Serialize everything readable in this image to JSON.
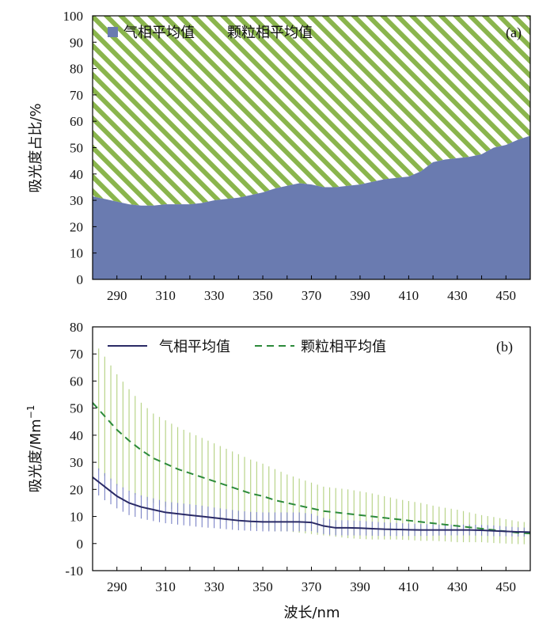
{
  "colors": {
    "gas_fill": "#6a7bb0",
    "particle_hatch": "#8ab54d",
    "gas_line": "#2a2a66",
    "gas_error": "#7b83c6",
    "particle_line": "#2c8a3a",
    "particle_error": "#b9d48a",
    "axis": "#000000"
  },
  "chart_data": [
    {
      "type": "area",
      "panel_label": "(a)",
      "ylabel": "吸光度占比/%",
      "xlabel": "",
      "xlim": [
        280,
        460
      ],
      "ylim": [
        0,
        100
      ],
      "x_ticks": [
        290,
        310,
        330,
        350,
        370,
        390,
        410,
        430,
        450
      ],
      "y_ticks": [
        0,
        10,
        20,
        30,
        40,
        50,
        60,
        70,
        80,
        90,
        100
      ],
      "stacked": true,
      "legend_position": "top-left",
      "x": [
        280,
        285,
        290,
        295,
        300,
        305,
        310,
        315,
        320,
        325,
        330,
        335,
        340,
        345,
        350,
        355,
        360,
        365,
        370,
        375,
        380,
        385,
        390,
        395,
        400,
        405,
        410,
        415,
        420,
        425,
        430,
        435,
        440,
        445,
        450,
        455,
        460
      ],
      "series": [
        {
          "name": "气相平均值",
          "style": "solid",
          "values": [
            31.5,
            30.5,
            29.5,
            28.5,
            28,
            28,
            28.5,
            28.5,
            28.5,
            29,
            30,
            30.5,
            31,
            32,
            33,
            34.5,
            35.5,
            36.5,
            36,
            35,
            35,
            35.5,
            36,
            37,
            38,
            38.5,
            39,
            41,
            44.5,
            45.5,
            46,
            46.5,
            47.5,
            50,
            51,
            53,
            54.5
          ]
        },
        {
          "name": "颗粒相平均值",
          "style": "hatched",
          "values": [
            68.5,
            69.5,
            70.5,
            71.5,
            72,
            72,
            71.5,
            71.5,
            71.5,
            71,
            70,
            69.5,
            69,
            68,
            67,
            65.5,
            64.5,
            63.5,
            64,
            65,
            65,
            64.5,
            64,
            63,
            62,
            61.5,
            61,
            59,
            55.5,
            54.5,
            54,
            53.5,
            52.5,
            50,
            49,
            47,
            45.5
          ]
        }
      ]
    },
    {
      "type": "line",
      "panel_label": "(b)",
      "ylabel": "吸光度/Mm",
      "ylabel_superscript": "−1",
      "xlabel": "波长/nm",
      "xlim": [
        280,
        460
      ],
      "ylim": [
        -10,
        80
      ],
      "x_ticks": [
        290,
        310,
        330,
        350,
        370,
        390,
        410,
        430,
        450
      ],
      "y_ticks": [
        -10,
        0,
        10,
        20,
        30,
        40,
        50,
        60,
        70,
        80
      ],
      "legend_position": "top",
      "x": [
        280,
        285,
        290,
        295,
        300,
        305,
        310,
        315,
        320,
        325,
        330,
        335,
        340,
        345,
        350,
        355,
        360,
        365,
        370,
        375,
        380,
        385,
        390,
        395,
        400,
        405,
        410,
        415,
        420,
        425,
        430,
        435,
        440,
        445,
        450,
        455,
        460
      ],
      "series": [
        {
          "name": "气相平均值",
          "style": "solid",
          "values": [
            24.5,
            21,
            17.5,
            15,
            13.5,
            12.5,
            11.5,
            11,
            10.5,
            10,
            9.5,
            9,
            8.5,
            8.2,
            8,
            8,
            8,
            8,
            7.8,
            6.5,
            5.8,
            5.8,
            5.7,
            5.5,
            5.3,
            5.2,
            5.1,
            5,
            5,
            5,
            5,
            5,
            4.9,
            4.7,
            4.5,
            4.3,
            4.2
          ],
          "error": [
            5,
            5,
            4.5,
            4.5,
            4.3,
            4.2,
            4,
            4,
            4,
            4,
            3.8,
            3.7,
            3.6,
            3.5,
            3.5,
            3.5,
            3.5,
            3.5,
            3.2,
            3,
            2.8,
            2.8,
            2.7,
            2.6,
            2.5,
            2.4,
            2.3,
            2.2,
            2.1,
            2,
            2,
            2,
            2,
            2,
            1.8,
            1.7,
            1.6
          ]
        },
        {
          "name": "颗粒相平均值",
          "style": "dashed",
          "values": [
            52,
            47,
            42,
            38,
            34.5,
            31.5,
            29.5,
            27.5,
            26,
            24.5,
            23,
            21.5,
            20,
            18.5,
            17.5,
            16,
            15,
            14,
            13,
            12,
            11.5,
            11,
            10.5,
            10,
            9.5,
            9,
            8.5,
            8,
            7.5,
            7,
            6.5,
            6,
            5.5,
            5,
            4.5,
            4,
            3.7
          ],
          "error": [
            23,
            22,
            20.5,
            19,
            17.5,
            16.5,
            16,
            15.5,
            15,
            14.5,
            14,
            13.5,
            13,
            12.5,
            12,
            11.5,
            10.5,
            10,
            9.5,
            9,
            9,
            9,
            8.8,
            8.5,
            8,
            7.5,
            7.2,
            7,
            6.5,
            6.2,
            6,
            5.5,
            5,
            4.8,
            4.5,
            4.2,
            4
          ]
        }
      ]
    }
  ]
}
